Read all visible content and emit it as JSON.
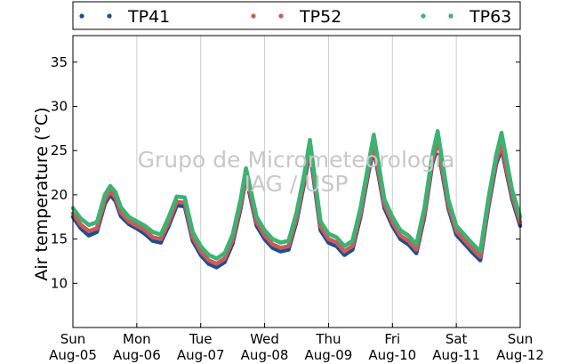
{
  "chart_data": {
    "type": "scatter",
    "title": "",
    "xlabel": "",
    "ylabel": "Air temperature (°C)",
    "ylim": [
      5,
      38
    ],
    "yticks": [
      10,
      15,
      20,
      25,
      30,
      35
    ],
    "xlim": [
      "2018-08-05",
      "2018-08-12"
    ],
    "xticks": [
      {
        "date": "2018-08-05",
        "day": "Sun",
        "label": "Aug-05"
      },
      {
        "date": "2018-08-06",
        "day": "Mon",
        "label": "Aug-06"
      },
      {
        "date": "2018-08-07",
        "day": "Tue",
        "label": "Aug-07"
      },
      {
        "date": "2018-08-08",
        "day": "Wed",
        "label": "Aug-08"
      },
      {
        "date": "2018-08-09",
        "day": "Thu",
        "label": "Aug-09"
      },
      {
        "date": "2018-08-10",
        "day": "Fri",
        "label": "Aug-10"
      },
      {
        "date": "2018-08-11",
        "day": "Sat",
        "label": "Aug-11"
      },
      {
        "date": "2018-08-12",
        "day": "Sun",
        "label": "Aug-12"
      }
    ],
    "grid": "vertical",
    "legend_position": "top",
    "watermark": [
      "Grupo de Micrometeorologia",
      "IAG / USP"
    ],
    "series": [
      {
        "name": "TP41",
        "color": "#1f4e8c",
        "x": [
          "2018-08-05 00:00",
          "2018-08-05 03:00",
          "2018-08-05 06:00",
          "2018-08-05 09:00",
          "2018-08-05 12:00",
          "2018-08-05 14:00",
          "2018-08-05 16:00",
          "2018-08-05 18:00",
          "2018-08-05 21:00",
          "2018-08-06 00:00",
          "2018-08-06 03:00",
          "2018-08-06 06:00",
          "2018-08-06 09:00",
          "2018-08-06 12:00",
          "2018-08-06 15:00",
          "2018-08-06 18:00",
          "2018-08-06 21:00",
          "2018-08-07 00:00",
          "2018-08-07 03:00",
          "2018-08-07 06:00",
          "2018-08-07 09:00",
          "2018-08-07 12:00",
          "2018-08-07 15:00",
          "2018-08-07 17:00",
          "2018-08-07 21:00",
          "2018-08-08 00:00",
          "2018-08-08 03:00",
          "2018-08-08 06:00",
          "2018-08-08 09:00",
          "2018-08-08 12:00",
          "2018-08-08 15:00",
          "2018-08-08 17:00",
          "2018-08-08 21:00",
          "2018-08-09 00:00",
          "2018-08-09 03:00",
          "2018-08-09 06:00",
          "2018-08-09 09:00",
          "2018-08-09 12:00",
          "2018-08-09 15:00",
          "2018-08-09 17:00",
          "2018-08-09 21:00",
          "2018-08-10 00:00",
          "2018-08-10 03:00",
          "2018-08-10 06:00",
          "2018-08-10 09:00",
          "2018-08-10 12:00",
          "2018-08-10 15:00",
          "2018-08-10 17:00",
          "2018-08-10 21:00",
          "2018-08-11 00:00",
          "2018-08-11 03:00",
          "2018-08-11 06:00",
          "2018-08-11 09:00",
          "2018-08-11 12:00",
          "2018-08-11 15:00",
          "2018-08-11 17:00",
          "2018-08-11 21:00",
          "2018-08-12 00:00"
        ],
        "y": [
          17.5,
          16.2,
          15.4,
          15.8,
          19.0,
          20.0,
          19.3,
          17.6,
          16.7,
          16.2,
          15.6,
          14.8,
          14.6,
          16.5,
          18.8,
          18.7,
          14.8,
          13.2,
          12.2,
          11.8,
          12.4,
          14.5,
          18.5,
          22.0,
          16.5,
          15.0,
          14.0,
          13.6,
          13.8,
          17.0,
          21.5,
          25.0,
          16.0,
          14.6,
          14.2,
          13.2,
          13.8,
          17.5,
          22.5,
          25.2,
          18.5,
          16.5,
          15.0,
          14.4,
          13.4,
          17.5,
          23.5,
          25.5,
          18.5,
          15.5,
          14.5,
          13.5,
          12.6,
          18.5,
          23.5,
          25.2,
          19.5,
          16.5
        ]
      },
      {
        "name": "TP52",
        "color": "#cc5a5a",
        "x": [
          "2018-08-05 00:00",
          "2018-08-05 03:00",
          "2018-08-05 06:00",
          "2018-08-05 09:00",
          "2018-08-05 12:00",
          "2018-08-05 14:00",
          "2018-08-05 16:00",
          "2018-08-05 18:00",
          "2018-08-05 21:00",
          "2018-08-06 00:00",
          "2018-08-06 03:00",
          "2018-08-06 06:00",
          "2018-08-06 09:00",
          "2018-08-06 12:00",
          "2018-08-06 15:00",
          "2018-08-06 18:00",
          "2018-08-06 21:00",
          "2018-08-07 00:00",
          "2018-08-07 03:00",
          "2018-08-07 06:00",
          "2018-08-07 09:00",
          "2018-08-07 12:00",
          "2018-08-07 15:00",
          "2018-08-07 17:00",
          "2018-08-07 21:00",
          "2018-08-08 00:00",
          "2018-08-08 03:00",
          "2018-08-08 06:00",
          "2018-08-08 09:00",
          "2018-08-08 12:00",
          "2018-08-08 15:00",
          "2018-08-08 17:00",
          "2018-08-08 21:00",
          "2018-08-09 00:00",
          "2018-08-09 03:00",
          "2018-08-09 06:00",
          "2018-08-09 09:00",
          "2018-08-09 12:00",
          "2018-08-09 15:00",
          "2018-08-09 17:00",
          "2018-08-09 21:00",
          "2018-08-10 00:00",
          "2018-08-10 03:00",
          "2018-08-10 06:00",
          "2018-08-10 09:00",
          "2018-08-10 12:00",
          "2018-08-10 15:00",
          "2018-08-10 17:00",
          "2018-08-10 21:00",
          "2018-08-11 00:00",
          "2018-08-11 03:00",
          "2018-08-11 06:00",
          "2018-08-11 09:00",
          "2018-08-11 12:00",
          "2018-08-11 15:00",
          "2018-08-11 17:00",
          "2018-08-11 21:00",
          "2018-08-12 00:00"
        ],
        "y": [
          17.9,
          16.6,
          15.9,
          16.2,
          19.4,
          20.4,
          19.7,
          18.0,
          17.0,
          16.5,
          16.0,
          15.2,
          15.0,
          16.9,
          19.2,
          19.1,
          15.2,
          13.6,
          12.6,
          12.2,
          12.8,
          14.9,
          18.9,
          22.4,
          16.9,
          15.4,
          14.4,
          14.0,
          14.2,
          17.4,
          21.9,
          25.4,
          16.4,
          15.0,
          14.6,
          13.6,
          14.2,
          17.9,
          22.9,
          25.6,
          18.9,
          16.9,
          15.4,
          14.8,
          13.8,
          17.9,
          23.9,
          25.9,
          18.9,
          15.9,
          14.9,
          13.9,
          13.0,
          18.9,
          23.9,
          25.6,
          19.9,
          16.9
        ]
      },
      {
        "name": "TP63",
        "color": "#3cb371",
        "x": [
          "2018-08-05 00:00",
          "2018-08-05 03:00",
          "2018-08-05 06:00",
          "2018-08-05 09:00",
          "2018-08-05 12:00",
          "2018-08-05 14:00",
          "2018-08-05 16:00",
          "2018-08-05 18:00",
          "2018-08-05 21:00",
          "2018-08-06 00:00",
          "2018-08-06 03:00",
          "2018-08-06 06:00",
          "2018-08-06 09:00",
          "2018-08-06 12:00",
          "2018-08-06 15:00",
          "2018-08-06 18:00",
          "2018-08-06 21:00",
          "2018-08-07 00:00",
          "2018-08-07 03:00",
          "2018-08-07 06:00",
          "2018-08-07 09:00",
          "2018-08-07 12:00",
          "2018-08-07 15:00",
          "2018-08-07 17:00",
          "2018-08-07 21:00",
          "2018-08-08 00:00",
          "2018-08-08 03:00",
          "2018-08-08 06:00",
          "2018-08-08 09:00",
          "2018-08-08 12:00",
          "2018-08-08 15:00",
          "2018-08-08 17:00",
          "2018-08-08 21:00",
          "2018-08-09 00:00",
          "2018-08-09 03:00",
          "2018-08-09 06:00",
          "2018-08-09 09:00",
          "2018-08-09 12:00",
          "2018-08-09 15:00",
          "2018-08-09 17:00",
          "2018-08-09 21:00",
          "2018-08-10 00:00",
          "2018-08-10 03:00",
          "2018-08-10 06:00",
          "2018-08-10 09:00",
          "2018-08-10 12:00",
          "2018-08-10 15:00",
          "2018-08-10 17:00",
          "2018-08-10 21:00",
          "2018-08-11 00:00",
          "2018-08-11 03:00",
          "2018-08-11 06:00",
          "2018-08-11 09:00",
          "2018-08-11 12:00",
          "2018-08-11 15:00",
          "2018-08-11 17:00",
          "2018-08-11 21:00",
          "2018-08-12 00:00"
        ],
        "y": [
          18.5,
          17.3,
          16.6,
          16.9,
          20.0,
          21.0,
          20.3,
          18.6,
          17.5,
          17.0,
          16.5,
          15.8,
          15.5,
          17.5,
          19.8,
          19.7,
          15.8,
          14.2,
          13.2,
          12.8,
          13.4,
          15.5,
          19.5,
          23.0,
          17.5,
          16.0,
          15.0,
          14.6,
          14.8,
          18.0,
          22.5,
          26.2,
          17.0,
          15.6,
          15.2,
          14.2,
          14.8,
          18.5,
          23.5,
          26.8,
          19.5,
          17.5,
          16.0,
          15.4,
          14.4,
          18.5,
          24.5,
          27.2,
          19.5,
          16.5,
          15.5,
          14.5,
          13.6,
          19.5,
          24.5,
          27.0,
          20.5,
          17.5
        ]
      }
    ]
  }
}
